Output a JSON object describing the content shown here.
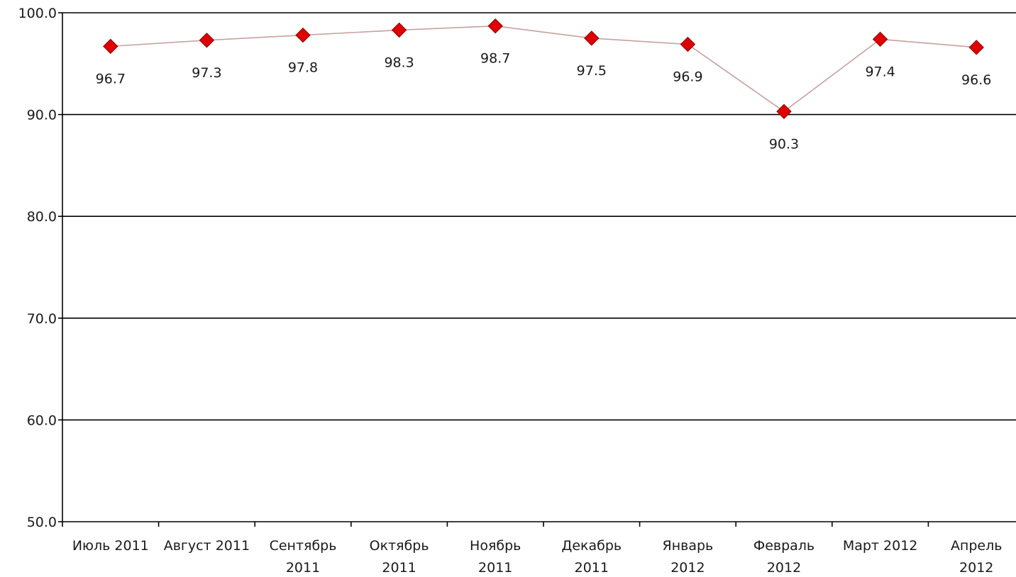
{
  "chart_data": {
    "type": "line",
    "title": "",
    "xlabel": "",
    "ylabel": "",
    "ylim": [
      50,
      100
    ],
    "yticks": [
      "50.0",
      "60.0",
      "70.0",
      "80.0",
      "90.0",
      "100.0"
    ],
    "grid": true,
    "legend": "none",
    "categories": [
      [
        "Июль 2011"
      ],
      [
        "Август 2011"
      ],
      [
        "Сентябрь",
        "2011"
      ],
      [
        "Октябрь",
        "2011"
      ],
      [
        "Ноябрь",
        "2011"
      ],
      [
        "Декабрь",
        "2011"
      ],
      [
        "Январь",
        "2012"
      ],
      [
        "Февраль",
        "2012"
      ],
      [
        "Март 2012"
      ],
      [
        "Апрель",
        "2012"
      ]
    ],
    "series": [
      {
        "values": [
          96.7,
          97.3,
          97.8,
          98.3,
          98.7,
          97.5,
          96.9,
          90.3,
          97.4,
          96.6
        ],
        "data_labels": [
          "96.7",
          "97.3",
          "97.8",
          "98.3",
          "98.7",
          "97.5",
          "96.9",
          "90.3",
          "97.4",
          "96.6"
        ],
        "marker": "diamond",
        "marker_color": "#e00000",
        "line_color": "#c8a0a0"
      }
    ],
    "colors": {
      "grid": "#000000",
      "axis": "#000000",
      "text": "#1a1a1a"
    }
  }
}
